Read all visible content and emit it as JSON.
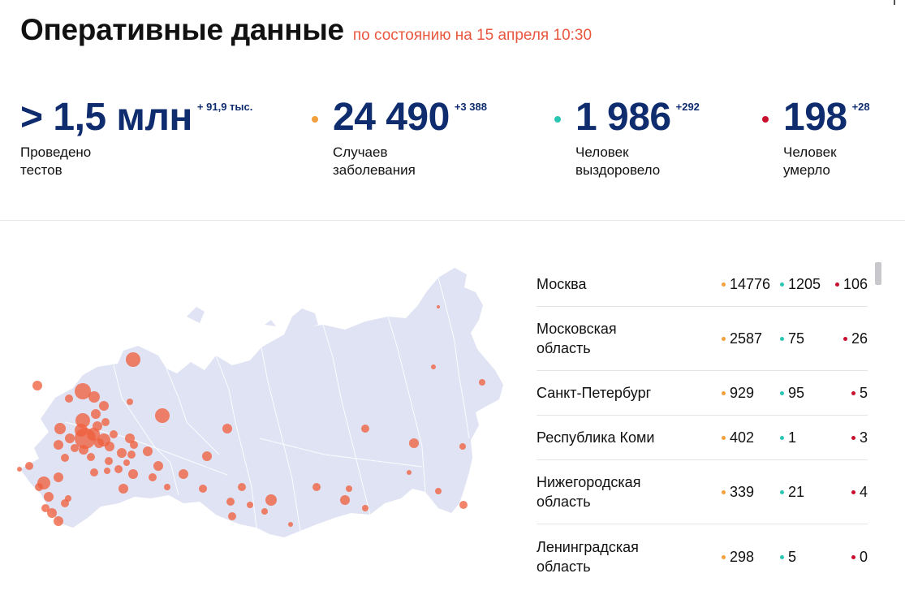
{
  "header": {
    "title": "Оперативные данные",
    "subtitle": "по состоянию на 15 апреля 10:30"
  },
  "stats": [
    {
      "value": "> 1,5 млн",
      "delta": "+ 91,9 тыс.",
      "label_line1": "Проведено",
      "label_line2": "тестов",
      "dot_color": ""
    },
    {
      "value": "24 490",
      "delta": "+3 388",
      "label_line1": "Случаев",
      "label_line2": "заболевания",
      "dot_color": "#f2a03d"
    },
    {
      "value": "1 986",
      "delta": "+292",
      "label_line1": "Человек",
      "label_line2": "выздоровело",
      "dot_color": "#2bc5b4"
    },
    {
      "value": "198",
      "delta": "+28",
      "label_line1": "Человек",
      "label_line2": "умерло",
      "dot_color": "#c8102e"
    }
  ],
  "colors": {
    "cases": "#f2a03d",
    "recovered": "#2bc5b4",
    "deaths": "#c8102e",
    "value_text": "#0f2d6e",
    "subtitle": "#e8573e",
    "map_land": "#dfe3f3",
    "map_bubble": "#f0603f"
  },
  "regions": [
    {
      "name_line1": "Москва",
      "name_line2": "",
      "cases": "14776",
      "recovered": "1205",
      "deaths": "106"
    },
    {
      "name_line1": "Московская",
      "name_line2": "область",
      "cases": "2587",
      "recovered": "75",
      "deaths": "26"
    },
    {
      "name_line1": "Санкт-Петербург",
      "name_line2": "",
      "cases": "929",
      "recovered": "95",
      "deaths": "5"
    },
    {
      "name_line1": "Республика Коми",
      "name_line2": "",
      "cases": "402",
      "recovered": "1",
      "deaths": "3"
    },
    {
      "name_line1": "Нижегородская",
      "name_line2": "область",
      "cases": "339",
      "recovered": "21",
      "deaths": "4"
    },
    {
      "name_line1": "Ленинградская",
      "name_line2": "область",
      "cases": "298",
      "recovered": "5",
      "deaths": "0"
    }
  ]
}
